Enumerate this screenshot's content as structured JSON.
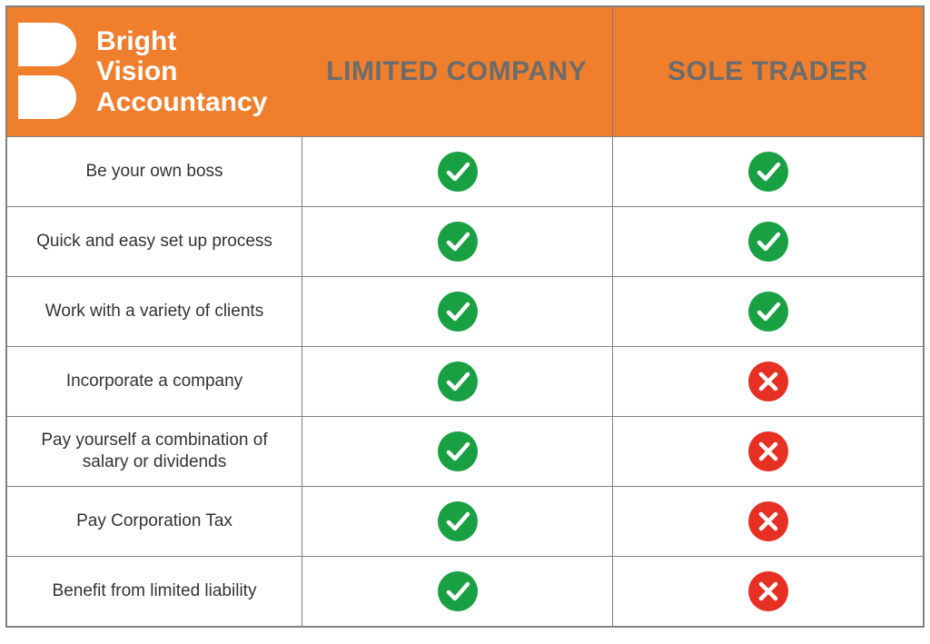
{
  "brand": {
    "line1": "Bright",
    "line2": "Vision",
    "line3": "Accountancy"
  },
  "colors": {
    "header_bg": "#ef7e2d",
    "header_text": "#6c6c6c",
    "check_bg": "#18a043",
    "cross_bg": "#e53023",
    "icon_stroke": "#ffffff",
    "border": "#808080",
    "feature_text": "#333333"
  },
  "columns": {
    "col1": "LIMITED COMPANY",
    "col2": "SOLE TRADER"
  },
  "rows": [
    {
      "feature": "Be your own boss",
      "col1": "check",
      "col2": "check"
    },
    {
      "feature": "Quick and easy set up process",
      "col1": "check",
      "col2": "check"
    },
    {
      "feature": "Work with a variety of clients",
      "col1": "check",
      "col2": "check"
    },
    {
      "feature": "Incorporate a company",
      "col1": "check",
      "col2": "cross"
    },
    {
      "feature": "Pay yourself a combination of salary or dividends",
      "col1": "check",
      "col2": "cross"
    },
    {
      "feature": "Pay Corporation Tax",
      "col1": "check",
      "col2": "cross"
    },
    {
      "feature": "Benefit from limited liability",
      "col1": "check",
      "col2": "cross"
    }
  ]
}
